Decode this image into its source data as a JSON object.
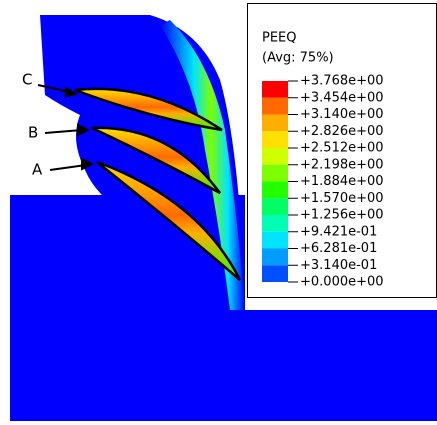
{
  "legend": {
    "title": "PEEQ",
    "subtitle": "(Avg: 75%)",
    "labels": [
      "+3.768e+00",
      "+3.454e+00",
      "+3.140e+00",
      "+2.826e+00",
      "+2.512e+00",
      "+2.198e+00",
      "+1.884e+00",
      "+1.570e+00",
      "+1.256e+00",
      "+9.421e-01",
      "+6.281e-01",
      "+3.140e-01",
      "+0.000e+00"
    ],
    "colors": [
      "#ff0000",
      "#ff6a00",
      "#ffae00",
      "#ffe000",
      "#d0ff00",
      "#7cff00",
      "#22ff00",
      "#00ff62",
      "#00ffb4",
      "#00e4ff",
      "#009cff",
      "#0050ff"
    ]
  },
  "annotations": [
    "C",
    "B",
    "A"
  ]
}
